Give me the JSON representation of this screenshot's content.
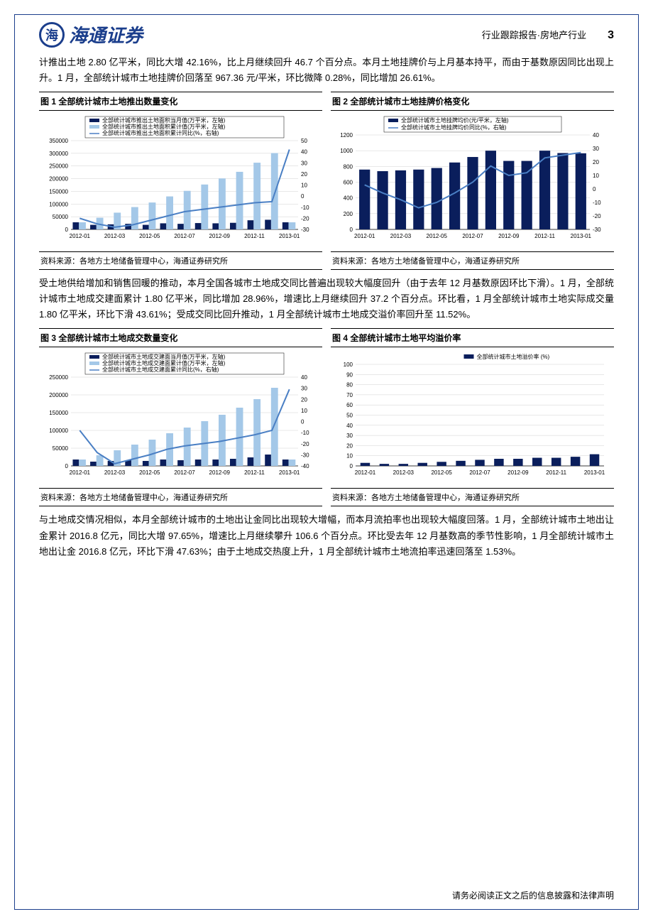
{
  "header": {
    "logo_text": "海通证券",
    "report_type": "行业跟踪报告·房地产行业",
    "page_number": "3"
  },
  "intro_paragraph": "计推出土地 2.80 亿平米，同比大增 42.16%，比上月继续回升 46.7 个百分点。本月土地挂牌价与上月基本持平，而由于基数原因同比出现上升。1 月，全部统计城市土地挂牌价回落至 967.36 元/平米，环比微降 0.28%，同比增加 26.61%。",
  "paragraph2": "受土地供给增加和销售回暖的推动，本月全国各城市土地成交同比普遍出现较大幅度回升（由于去年 12 月基数原因环比下滑）。1 月，全部统计城市土地成交建面累计 1.80 亿平米，同比增加 28.96%，增速比上月继续回升 37.2 个百分点。环比看，1 月全部统计城市土地实际成交量 1.80 亿平米，环比下滑 43.61%；受成交同比回升推动，1 月全部统计城市土地成交溢价率回升至 11.52%。",
  "paragraph3": "与土地成交情况相似，本月全部统计城市的土地出让金同比出现较大增幅，而本月流拍率也出现较大幅度回落。1 月，全部统计城市土地出让金累计 2016.8 亿元，同比大增 97.65%，增速比上月继续攀升 106.6 个百分点。环比受去年 12 月基数高的季节性影响，1 月全部统计城市土地出让金 2016.8 亿元，环比下滑 47.63%；由于土地成交热度上升，1 月全部统计城市土地流拍率迅速回落至 1.53%。",
  "source_text": "资料来源：各地方土地储备管理中心，海通证券研究所",
  "footer": "请务必阅读正文之后的信息披露和法律声明",
  "chart1": {
    "title": "图 1 全部统计城市土地推出数量变化",
    "legend": [
      "全部统计城市推出土地面积当月值(万平米，左轴)",
      "全部统计城市推出土地面积累计值(万平米，左轴)",
      "全部统计城市推出土地面积累计同比(%，右轴)"
    ],
    "x_labels": [
      "2012-01",
      "2012-03",
      "2012-05",
      "2012-07",
      "2012-09",
      "2012-11",
      "2013-01"
    ],
    "y1_ticks": [
      0,
      50000,
      100000,
      150000,
      200000,
      250000,
      300000,
      350000
    ],
    "y2_ticks": [
      -30,
      -20,
      -10,
      0,
      10,
      20,
      30,
      40,
      50
    ],
    "dark_bars": [
      28000,
      18000,
      20000,
      22000,
      18000,
      24000,
      22000,
      25000,
      24000,
      26000,
      36000,
      38000,
      28000
    ],
    "light_bars": [
      28000,
      46000,
      66000,
      88000,
      106000,
      130000,
      152000,
      177000,
      201000,
      227000,
      263000,
      301000,
      28000
    ],
    "line_vals": [
      -20,
      -25,
      -28,
      -26,
      -22,
      -18,
      -14,
      -12,
      -10,
      -8,
      -6,
      -5,
      42
    ],
    "colors": {
      "dark": "#0a1e5c",
      "light": "#a4c8e8",
      "line": "#4a7fc4",
      "grid": "#d0d0d0"
    }
  },
  "chart2": {
    "title": "图 2 全部统计城市土地挂牌价格变化",
    "legend": [
      "全部统计城市土地挂牌均价(元/平米，左轴)",
      "全部统计城市土地挂牌均价同比(%，右轴)"
    ],
    "x_labels": [
      "2012-01",
      "2012-03",
      "2012-05",
      "2012-07",
      "2012-09",
      "2012-11",
      "2013-01"
    ],
    "y1_ticks": [
      0,
      200,
      400,
      600,
      800,
      1000,
      1200
    ],
    "y2_ticks": [
      -30,
      -20,
      -10,
      0,
      10,
      20,
      30,
      40
    ],
    "bars": [
      760,
      740,
      750,
      760,
      780,
      850,
      920,
      1000,
      870,
      870,
      1000,
      970,
      967
    ],
    "line_vals": [
      3,
      -3,
      -8,
      -14,
      -10,
      -3,
      5,
      17,
      10,
      12,
      23,
      25,
      27
    ],
    "colors": {
      "dark": "#0a1e5c",
      "line": "#4a7fc4",
      "grid": "#d0d0d0"
    }
  },
  "chart3": {
    "title": "图 3 全部统计城市土地成交数量变化",
    "legend": [
      "全部统计城市土地成交建面当月值(万平米，左轴)",
      "全部统计城市土地成交建面累计值(万平米，左轴)",
      "全部统计城市土地成交建面累计同比(%，右轴)"
    ],
    "x_labels": [
      "2012-01",
      "2012-03",
      "2012-05",
      "2012-07",
      "2012-09",
      "2012-11",
      "2013-01"
    ],
    "y1_ticks": [
      0,
      50000,
      100000,
      150000,
      200000,
      250000
    ],
    "y2_ticks": [
      -40,
      -30,
      -20,
      -10,
      0,
      10,
      20,
      30,
      40
    ],
    "dark_bars": [
      18000,
      12000,
      14000,
      16000,
      14000,
      18000,
      16000,
      18000,
      18000,
      20000,
      24000,
      32000,
      18000
    ],
    "light_bars": [
      18000,
      30000,
      44000,
      60000,
      74000,
      92000,
      108000,
      126000,
      144000,
      164000,
      188000,
      220000,
      18000
    ],
    "line_vals": [
      -8,
      -28,
      -38,
      -34,
      -30,
      -25,
      -22,
      -20,
      -18,
      -15,
      -12,
      -8,
      29
    ],
    "colors": {
      "dark": "#0a1e5c",
      "light": "#a4c8e8",
      "line": "#4a7fc4",
      "grid": "#d0d0d0"
    }
  },
  "chart4": {
    "title": "图 4 全部统计城市土地平均溢价率",
    "legend": [
      "全部统计城市土地溢价率 (%)"
    ],
    "x_labels": [
      "2012-01",
      "2012-03",
      "2012-05",
      "2012-07",
      "2012-09",
      "2012-11",
      "2013-01"
    ],
    "y1_ticks": [
      0,
      10,
      20,
      30,
      40,
      50,
      60,
      70,
      80,
      90,
      100
    ],
    "bars": [
      3,
      2,
      2,
      3,
      4,
      5,
      6,
      7,
      7,
      8,
      8,
      9,
      11.5
    ],
    "colors": {
      "dark": "#0a1e5c",
      "grid": "#d0d0d0"
    }
  }
}
